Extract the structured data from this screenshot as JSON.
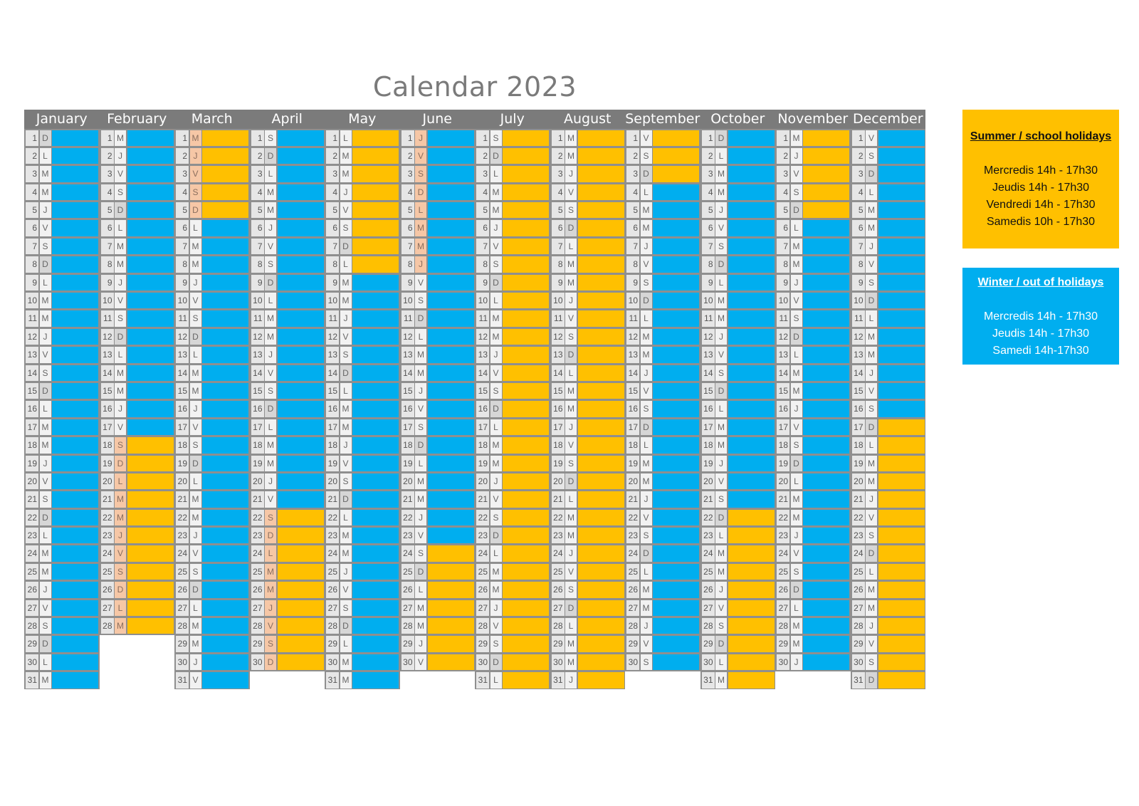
{
  "title": "Calendar 2023",
  "colors": {
    "summer": "#ffc000",
    "winter": "#00aeef",
    "header": "#7b7b7b"
  },
  "months": [
    {
      "name": "January",
      "days": 31,
      "start": 0,
      "summer_ranges": [],
      "holiday_marks": []
    },
    {
      "name": "February",
      "days": 28,
      "start": 3,
      "summer_ranges": [
        [
          18,
          28
        ]
      ],
      "holiday_marks": [
        [
          18,
          28
        ]
      ]
    },
    {
      "name": "March",
      "days": 31,
      "start": 3,
      "summer_ranges": [
        [
          1,
          5
        ]
      ],
      "holiday_marks": [
        [
          1,
          5
        ]
      ]
    },
    {
      "name": "April",
      "days": 30,
      "start": 6,
      "summer_ranges": [
        [
          22,
          30
        ]
      ],
      "holiday_marks": [
        [
          22,
          30
        ]
      ]
    },
    {
      "name": "May",
      "days": 31,
      "start": 1,
      "summer_ranges": [
        [
          1,
          8
        ]
      ],
      "holiday_marks": []
    },
    {
      "name": "June",
      "days": 30,
      "start": 4,
      "summer_ranges": [
        [
          24,
          30
        ]
      ],
      "holiday_marks": [
        [
          1,
          8
        ]
      ]
    },
    {
      "name": "July",
      "days": 31,
      "start": 6,
      "summer_ranges": [
        [
          1,
          31
        ]
      ],
      "holiday_marks": []
    },
    {
      "name": "August",
      "days": 31,
      "start": 2,
      "summer_ranges": [
        [
          1,
          31
        ]
      ],
      "holiday_marks": []
    },
    {
      "name": "September",
      "days": 30,
      "start": 5,
      "summer_ranges": [
        [
          1,
          3
        ]
      ],
      "holiday_marks": []
    },
    {
      "name": "October",
      "days": 31,
      "start": 0,
      "summer_ranges": [
        [
          22,
          31
        ]
      ],
      "holiday_marks": []
    },
    {
      "name": "November",
      "days": 30,
      "start": 3,
      "summer_ranges": [
        [
          1,
          5
        ]
      ],
      "holiday_marks": []
    },
    {
      "name": "December",
      "days": 31,
      "start": 5,
      "summer_ranges": [
        [
          17,
          31
        ]
      ],
      "holiday_marks": []
    }
  ],
  "weekday_letters": [
    "D",
    "L",
    "M",
    "M",
    "J",
    "V",
    "S"
  ],
  "legend_summer": {
    "title": "Summer / school holidays",
    "lines": [
      "Mercredis 14h - 17h30",
      "Jeudis 14h - 17h30",
      "Vendredi 14h - 17h30",
      "Samedis 10h - 17h30"
    ]
  },
  "legend_winter": {
    "title": "Winter / out of holidays",
    "lines": [
      "Mercredis 14h - 17h30",
      "Jeudis 14h - 17h30",
      "Samedi 14h-17h30"
    ]
  }
}
